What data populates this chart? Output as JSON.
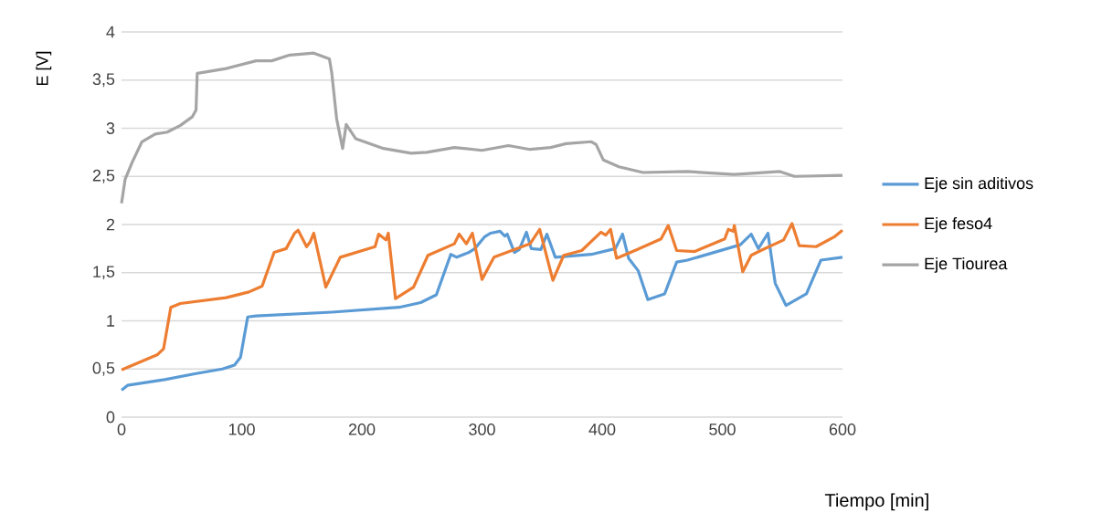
{
  "chart_data": {
    "type": "line",
    "xlabel": "Tiempo [min]",
    "ylabel": "E [V]",
    "xlim": [
      0,
      600
    ],
    "xticks": [
      0,
      100,
      200,
      300,
      400,
      500,
      600
    ],
    "ylim": [
      0,
      4
    ],
    "yticks": [
      0,
      {
        "value": 0.5,
        "label": "0,5"
      },
      1,
      {
        "value": 1.5,
        "label": "1,5"
      },
      2,
      {
        "value": 2.5,
        "label": "2,5"
      },
      3,
      {
        "value": 3.5,
        "label": "3,5"
      },
      4
    ],
    "grid": "y",
    "legend": "right",
    "marker": "none",
    "line_style": "solid",
    "series": [
      {
        "name": "Eje sin aditivos",
        "color": "#5b9bd5",
        "x": [
          0,
          5,
          36,
          61,
          84,
          94,
          99,
          105,
          112,
          175,
          231,
          249,
          262,
          274,
          279,
          289,
          294,
          302,
          307,
          315,
          319,
          321,
          327,
          331,
          337,
          341,
          349,
          354,
          361,
          391,
          411,
          417,
          422,
          430,
          438,
          452,
          462,
          471,
          515,
          524,
          530,
          538,
          544,
          553,
          570,
          582,
          600
        ],
        "values": [
          0.28,
          0.33,
          0.39,
          0.45,
          0.5,
          0.54,
          0.62,
          1.04,
          1.05,
          1.09,
          1.14,
          1.19,
          1.27,
          1.69,
          1.66,
          1.71,
          1.75,
          1.87,
          1.91,
          1.93,
          1.88,
          1.9,
          1.71,
          1.74,
          1.92,
          1.75,
          1.74,
          1.9,
          1.66,
          1.69,
          1.75,
          1.9,
          1.65,
          1.52,
          1.22,
          1.28,
          1.61,
          1.63,
          1.79,
          1.9,
          1.75,
          1.91,
          1.39,
          1.16,
          1.28,
          1.63,
          1.66
        ]
      },
      {
        "name": "Eje feso4",
        "color": "#ed7d31",
        "x": [
          0,
          30,
          35,
          41,
          49,
          87,
          106,
          117,
          127,
          137,
          144,
          147,
          154,
          157,
          160,
          170,
          182,
          211,
          214,
          220,
          222,
          228,
          243,
          255,
          277,
          281,
          287,
          292,
          300,
          310,
          340,
          348,
          359,
          368,
          383,
          399,
          403,
          407,
          412,
          429,
          449,
          455,
          462,
          477,
          502,
          505,
          509,
          510,
          517,
          524,
          532,
          551,
          558,
          564,
          578,
          593,
          600
        ],
        "values": [
          0.49,
          0.65,
          0.71,
          1.14,
          1.18,
          1.24,
          1.3,
          1.36,
          1.71,
          1.75,
          1.91,
          1.94,
          1.77,
          1.82,
          1.91,
          1.35,
          1.66,
          1.77,
          1.9,
          1.84,
          1.91,
          1.23,
          1.35,
          1.68,
          1.8,
          1.9,
          1.8,
          1.91,
          1.43,
          1.66,
          1.8,
          1.95,
          1.42,
          1.68,
          1.73,
          1.92,
          1.89,
          1.95,
          1.65,
          1.74,
          1.85,
          1.99,
          1.73,
          1.72,
          1.85,
          1.95,
          1.93,
          1.99,
          1.51,
          1.68,
          1.73,
          1.84,
          2.01,
          1.78,
          1.77,
          1.87,
          1.94
        ]
      },
      {
        "name": "Eje Tiourea",
        "color": "#a5a5a5",
        "x": [
          0,
          3,
          9,
          17,
          28,
          38,
          49,
          59,
          62,
          63,
          87,
          112,
          125,
          140,
          160,
          173,
          175,
          179,
          184,
          187,
          195,
          218,
          241,
          254,
          277,
          300,
          322,
          340,
          357,
          370,
          391,
          395,
          401,
          414,
          434,
          471,
          510,
          548,
          560,
          600
        ],
        "values": [
          2.22,
          2.47,
          2.65,
          2.86,
          2.94,
          2.96,
          3.03,
          3.12,
          3.19,
          3.57,
          3.62,
          3.7,
          3.7,
          3.76,
          3.78,
          3.72,
          3.57,
          3.1,
          2.79,
          3.04,
          2.89,
          2.79,
          2.74,
          2.75,
          2.8,
          2.77,
          2.82,
          2.78,
          2.8,
          2.84,
          2.86,
          2.83,
          2.67,
          2.6,
          2.54,
          2.55,
          2.52,
          2.55,
          2.5,
          2.51
        ]
      }
    ]
  }
}
